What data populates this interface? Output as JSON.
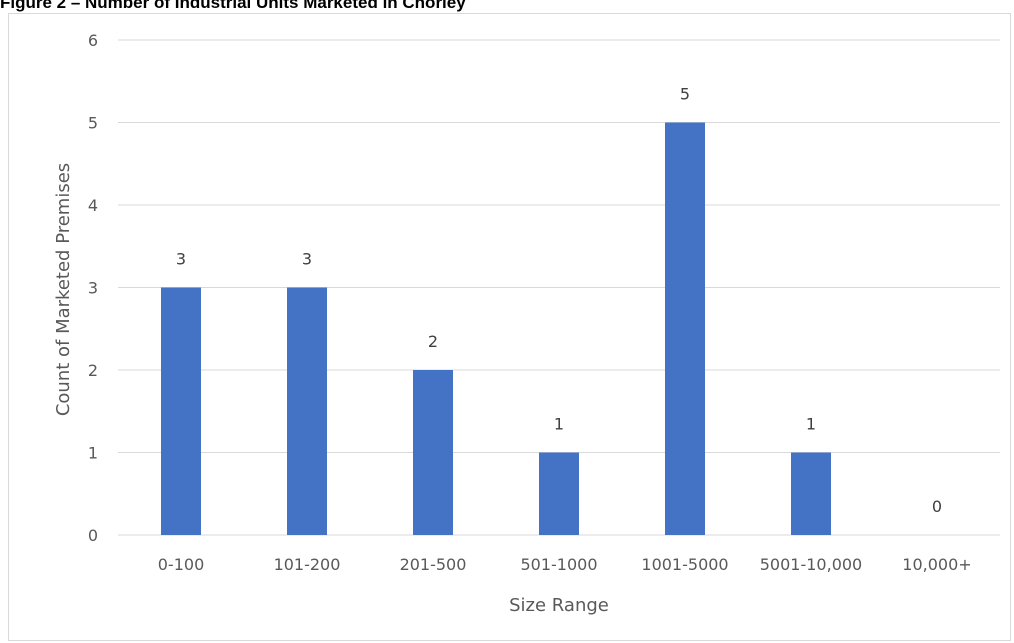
{
  "figure_title": "Figure 2 – Number of Industrial Units Marketed in Chorley",
  "chart_data": {
    "type": "bar",
    "title": "",
    "xlabel": "Size Range",
    "ylabel": "Count of Marketed Premises",
    "categories": [
      "0-100",
      "101-200",
      "201-500",
      "501-1000",
      "1001-5000",
      "5001-10,000",
      "10,000+"
    ],
    "values": [
      3,
      3,
      2,
      1,
      5,
      1,
      0
    ],
    "ylim": [
      0,
      6
    ],
    "yticks": [
      "0",
      "1",
      "2",
      "3",
      "4",
      "5",
      "6"
    ],
    "data_labels": [
      "3",
      "3",
      "2",
      "1",
      "5",
      "1",
      "0"
    ],
    "grid": true,
    "legend": "none",
    "colors": {
      "bar": "#4472C4",
      "grid": "#d9d9d9",
      "axis_text": "#595959"
    }
  }
}
